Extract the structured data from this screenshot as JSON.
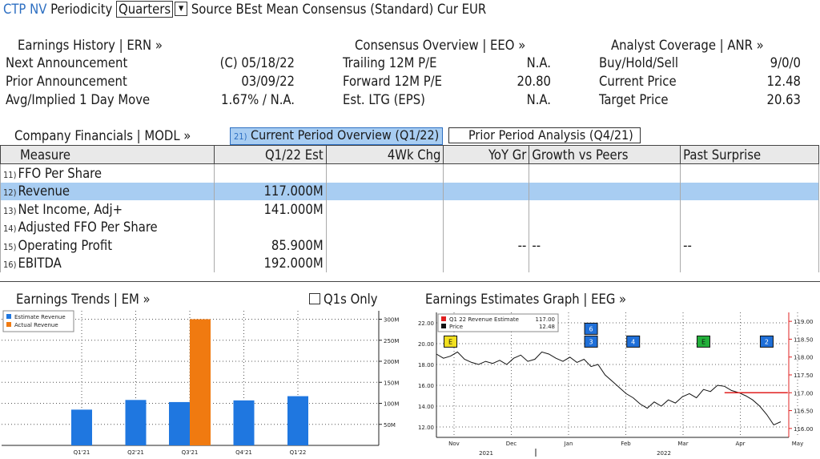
{
  "topbar": {
    "ticker": "CTP NV",
    "periodicity_label": "Periodicity",
    "periodicity_value": "Quarters",
    "rest": "Source BEst Mean Consensus (Standard) Cur EUR"
  },
  "summary": {
    "earnings_history": {
      "header": "Earnings History | ERN »",
      "rows": [
        {
          "label": "Next Announcement",
          "value": "(C)  05/18/22"
        },
        {
          "label": "Prior Announcement",
          "value": "03/09/22"
        },
        {
          "label": "Avg/Implied 1 Day Move",
          "value": "1.67% / N.A."
        }
      ]
    },
    "consensus_overview": {
      "header": "Consensus Overview | EEO »",
      "rows": [
        {
          "label": "Trailing 12M P/E",
          "value": "N.A."
        },
        {
          "label": "Forward 12M P/E",
          "value": "20.80"
        },
        {
          "label": "Est. LTG (EPS)",
          "value": "N.A."
        }
      ]
    },
    "analyst_coverage": {
      "header": "Analyst Coverage | ANR »",
      "rows": [
        {
          "label": "Buy/Hold/Sell",
          "value": "9/0/0"
        },
        {
          "label": "Current Price",
          "value": "12.48"
        },
        {
          "label": "Target Price",
          "value": "20.63"
        }
      ]
    }
  },
  "financials": {
    "header": "Company Financials | MODL »",
    "tab_active_num": "21)",
    "tab_active": "Current Period Overview (Q1/22)",
    "tab_other": "Prior Period Analysis (Q4/21)",
    "columns": [
      "Measure",
      "Q1/22 Est",
      "4Wk Chg",
      "YoY Gr",
      "Growth vs Peers",
      "Past Surprise"
    ],
    "rows": [
      {
        "num": "11)",
        "measure": "FFO Per Share",
        "est": "",
        "chg": "",
        "yoy": "",
        "peers": "",
        "surprise": ""
      },
      {
        "num": "12)",
        "measure": "Revenue",
        "est": "117.000M",
        "chg": "",
        "yoy": "",
        "peers": "",
        "surprise": ""
      },
      {
        "num": "13)",
        "measure": "Net Income, Adj+",
        "est": "141.000M",
        "chg": "",
        "yoy": "",
        "peers": "",
        "surprise": ""
      },
      {
        "num": "14)",
        "measure": "Adjusted FFO Per Share",
        "est": "",
        "chg": "",
        "yoy": "",
        "peers": "",
        "surprise": ""
      },
      {
        "num": "15)",
        "measure": "Operating Profit",
        "est": "85.900M",
        "chg": "",
        "yoy": "--",
        "peers": "--",
        "surprise": "--"
      },
      {
        "num": "16)",
        "measure": "EBITDA",
        "est": "192.000M",
        "chg": "",
        "yoy": "",
        "peers": "",
        "surprise": ""
      }
    ]
  },
  "earnings_trends": {
    "header": "Earnings Trends | EM »",
    "checkbox_label": "Q1s Only"
  },
  "earnings_graph": {
    "header": "Earnings Estimates Graph | EEG »"
  },
  "chart_data": [
    {
      "type": "bar",
      "title": "",
      "categories": [
        "Q1'21",
        "Q2'21",
        "Q3'21",
        "Q4'21",
        "Q1'22"
      ],
      "series": [
        {
          "name": "Estimate Revenue",
          "color": "#1f77e0",
          "values": [
            85,
            108,
            103,
            107,
            117
          ]
        },
        {
          "name": "Actual Revenue",
          "color": "#f07a10",
          "values": [
            null,
            null,
            300,
            null,
            null
          ]
        }
      ],
      "ylim": [
        0,
        320
      ],
      "yticks": [
        50,
        100,
        150,
        200,
        250,
        300
      ],
      "ytick_labels": [
        "50M",
        "100M",
        "150M",
        "200M",
        "250M",
        "300M"
      ],
      "legend_position": "top-left",
      "grid": true
    },
    {
      "type": "line",
      "title": "",
      "legend": [
        {
          "name": "Q1 22 Revenue Estimate",
          "value": "117.00",
          "color": "#e02020"
        },
        {
          "name": "Price",
          "value": "12.48",
          "color": "#111111"
        }
      ],
      "left_axis": {
        "ticks": [
          12.0,
          14.0,
          16.0,
          18.0,
          20.0,
          22.0
        ],
        "labels": [
          "12.00",
          "14.00",
          "16.00",
          "18.00",
          "20.00",
          "22.00"
        ],
        "ylim": [
          11,
          23
        ]
      },
      "right_axis": {
        "ticks": [
          116.0,
          116.5,
          117.0,
          117.5,
          118.0,
          118.5,
          119.0
        ],
        "labels": [
          "116.00",
          "116.50",
          "117.00",
          "117.50",
          "118.00",
          "118.50",
          "119.00"
        ],
        "ylim": [
          115.75,
          119.25
        ]
      },
      "months": [
        "Nov",
        "Dec",
        "Jan",
        "Feb",
        "Mar",
        "Apr",
        "May"
      ],
      "years": [
        "2021",
        "2022"
      ],
      "price_series": [
        19.0,
        18.6,
        18.8,
        19.2,
        18.5,
        18.2,
        18.0,
        18.3,
        18.1,
        18.4,
        18.0,
        18.6,
        18.9,
        18.3,
        18.5,
        19.2,
        19.0,
        18.6,
        18.3,
        18.7,
        18.2,
        18.5,
        17.8,
        18.0,
        17.0,
        16.4,
        15.8,
        15.2,
        14.8,
        14.2,
        13.8,
        14.4,
        14.0,
        14.6,
        14.3,
        14.9,
        15.2,
        14.8,
        15.6,
        15.4,
        16.0,
        15.9,
        15.5,
        15.3,
        15.0,
        14.6,
        14.0,
        13.2,
        12.2,
        12.5
      ],
      "estimate_series": {
        "start_index": 41,
        "end_index": 50,
        "value": 117.0
      },
      "event_markers": [
        {
          "label": "E",
          "type": "earnings",
          "color": "#f2e020",
          "index": 2
        },
        {
          "label": "3",
          "type": "estimate",
          "color": "#1f6fd8",
          "index": 22
        },
        {
          "label": "6",
          "type": "estimate",
          "color": "#1f6fd8",
          "index": 22
        },
        {
          "label": "4",
          "type": "estimate",
          "color": "#1f6fd8",
          "index": 28
        },
        {
          "label": "E",
          "type": "earnings",
          "color": "#22b03a",
          "index": 38
        },
        {
          "label": "2",
          "type": "estimate",
          "color": "#1f6fd8",
          "index": 47
        }
      ],
      "grid": true
    }
  ]
}
